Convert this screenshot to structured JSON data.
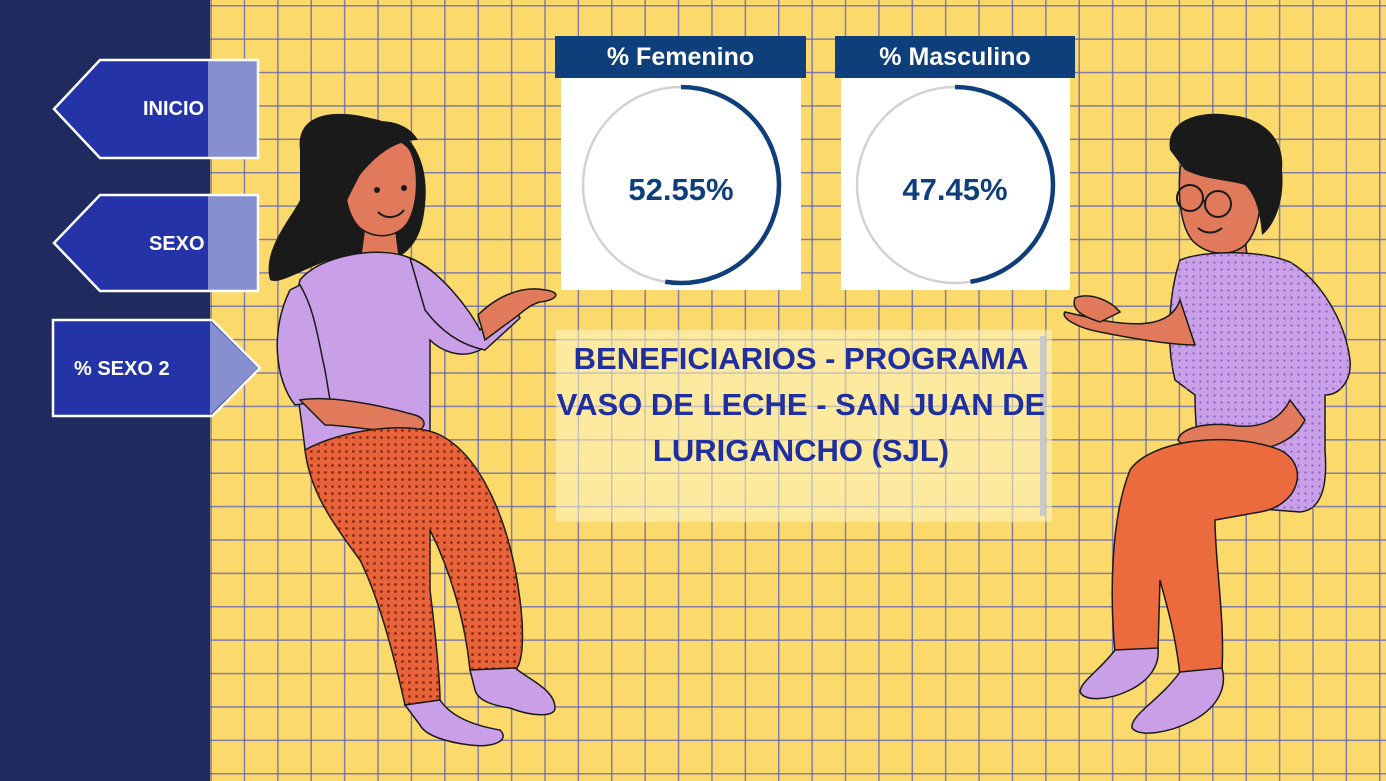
{
  "nav": {
    "items": [
      {
        "label": "INICIO"
      },
      {
        "label": "SEXO"
      },
      {
        "label": "% SEXO 2"
      }
    ]
  },
  "gauges": [
    {
      "title": "% Femenino",
      "value_text": "52.55%",
      "fraction": 0.5255
    },
    {
      "title": "% Masculino",
      "value_text": "47.45%",
      "fraction": 0.4745
    }
  ],
  "title": "BENEFICIARIOS - PROGRAMA VASO DE LECHE - SAN JUAN DE LURIGANCHO (SJL)",
  "colors": {
    "background": "#fcd96b",
    "grid": "#5a5fbe",
    "sidebar": "#1f2a5e",
    "nav_button": "#2433a8",
    "card_header": "#0e3f7b",
    "title_text": "#1f2fa0"
  }
}
